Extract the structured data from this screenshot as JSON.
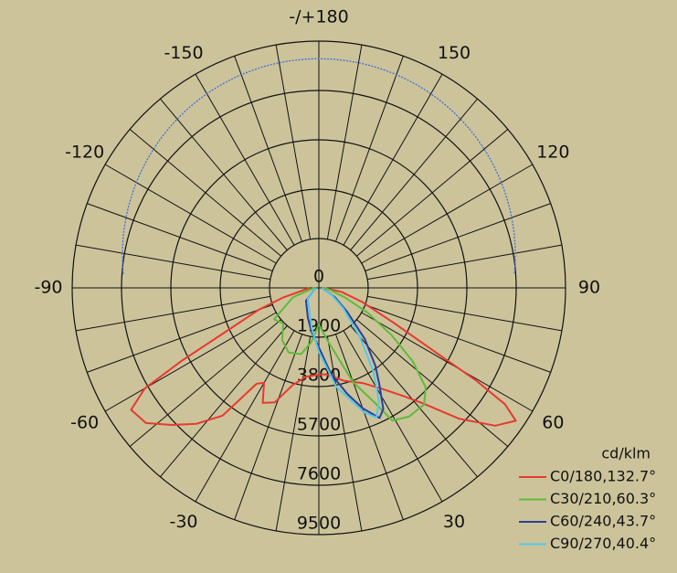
{
  "chart_data": {
    "type": "polar",
    "unit": "cd/klm",
    "rlim": [
      0,
      9500
    ],
    "rticks": [
      0,
      1900,
      3800,
      5700,
      7600,
      9500
    ],
    "angle_ticks": [
      {
        "value": 180,
        "label": "-/+180"
      },
      150,
      120,
      90,
      60,
      30,
      -30,
      -60,
      -90,
      -120,
      -150
    ],
    "legend": "bottom-right",
    "series": [
      {
        "name": "C0/180,132.7°",
        "color": "#e8392f",
        "angles": [
          -90,
          -75,
          -70,
          -65,
          -62,
          -60,
          -57,
          -52,
          -47,
          -42,
          -37,
          -33,
          -30,
          -26,
          -21,
          -15,
          -8,
          0,
          5,
          15,
          25,
          32,
          38,
          42,
          47,
          52,
          56,
          58,
          59.5,
          61,
          65,
          72,
          80,
          90
        ],
        "values": [
          350,
          1410,
          2460,
          3870,
          5980,
          7740,
          8620,
          8450,
          7740,
          7040,
          6160,
          4400,
          4220,
          4930,
          4720,
          3870,
          3450,
          3340,
          3340,
          3700,
          4050,
          4580,
          5280,
          5980,
          7390,
          8620,
          9150,
          8450,
          7040,
          5280,
          3170,
          1760,
          880,
          180
        ]
      },
      {
        "name": "C30/210,60.3°",
        "color": "#5dbb3c",
        "angles": [
          -90,
          -70,
          -55,
          -45,
          -35,
          -25,
          -15,
          -8,
          0,
          10,
          20,
          26,
          29,
          35,
          42,
          47,
          52,
          57,
          63,
          70,
          80,
          90
        ],
        "values": [
          180,
          1060,
          2110,
          1940,
          2460,
          2750,
          2640,
          2110,
          1410,
          2110,
          3870,
          4930,
          5840,
          6050,
          6050,
          5630,
          4580,
          3340,
          2110,
          1060,
          420,
          180
        ]
      },
      {
        "name": "C60/240,43.7°",
        "color": "#2b3f9a",
        "angles": [
          -90,
          -45,
          -20,
          -10,
          0,
          8,
          15,
          20,
          25,
          28,
          32,
          36,
          42,
          50,
          60,
          90
        ],
        "values": [
          110,
          700,
          1230,
          1690,
          2290,
          3340,
          4220,
          4930,
          5530,
          5280,
          4400,
          3700,
          2640,
          1410,
          700,
          110
        ]
      },
      {
        "name": "C90/270,40.4°",
        "color": "#55c8e8",
        "angles": [
          -90,
          -45,
          -10,
          0,
          10,
          20,
          24,
          28,
          33,
          40,
          50,
          60,
          90
        ],
        "values": [
          110,
          600,
          1580,
          2460,
          3870,
          5100,
          5460,
          4930,
          3870,
          2460,
          1230,
          600,
          110
        ]
      }
    ]
  }
}
